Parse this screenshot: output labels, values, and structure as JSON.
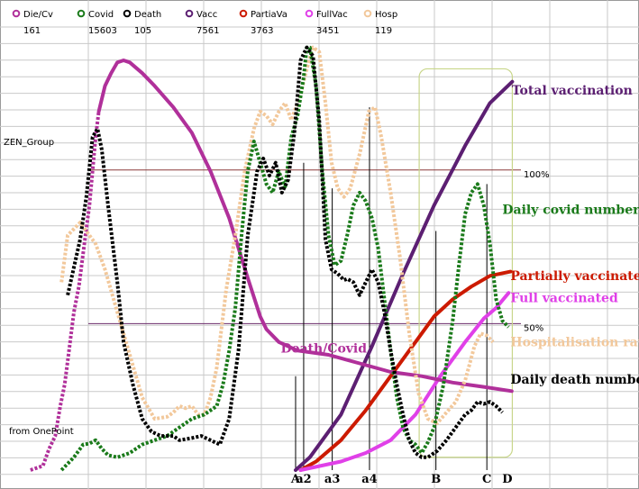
{
  "chart_data": {
    "type": "line",
    "legend": [
      {
        "name": "Die/Cv",
        "value": "161",
        "color": "#b0309a"
      },
      {
        "name": "Covid",
        "value": "15603",
        "color": "#1a7a1a"
      },
      {
        "name": "Death",
        "value": "105",
        "color": "#000000"
      },
      {
        "name": "Vacc",
        "value": "7561",
        "color": "#5c1f72"
      },
      {
        "name": "PartiaVa",
        "value": "3763",
        "color": "#cc1a00"
      },
      {
        "name": "FullVac",
        "value": "3451",
        "color": "#e040e8"
      },
      {
        "name": "Hosp",
        "value": "119",
        "color": "#f2c89b"
      }
    ],
    "xlim": [
      0,
      100
    ],
    "ylim": [
      0,
      100
    ],
    "reference_lines": [
      {
        "label": "100%",
        "y": 70.3,
        "color": "#8b3a3a"
      },
      {
        "label": "50%",
        "y": 34.3,
        "color": "#6a2a6a"
      }
    ],
    "side_labels": {
      "top": "ZEN_Group",
      "bottom": "from OnePoint"
    },
    "markers": [
      {
        "label": "A",
        "x": 44.7
      },
      {
        "label": "a2",
        "x": 46.0
      },
      {
        "label": "a3",
        "x": 50.6
      },
      {
        "label": "a4",
        "x": 56.6
      },
      {
        "label": "B",
        "x": 67.3
      },
      {
        "label": "C",
        "x": 75.5
      },
      {
        "label": "D",
        "x": 78.8
      }
    ],
    "series_labels": [
      {
        "text": "Total vaccination",
        "color": "#5c1f72",
        "x": 79.5,
        "y": 88
      },
      {
        "text": "Daily covid number",
        "color": "#1a7a1a",
        "x": 78.0,
        "y": 60
      },
      {
        "text": "Partially vaccinated",
        "color": "#cc1a00",
        "x": 79.3,
        "y": 44.5
      },
      {
        "text": "Full vaccinated",
        "color": "#e040e8",
        "x": 79.3,
        "y": 39.3
      },
      {
        "text": "Hospitalisation rate",
        "color": "#f2c89b",
        "x": 79.3,
        "y": 29
      },
      {
        "text": "Daily death number",
        "color": "#000000",
        "x": 79.3,
        "y": 20.3
      },
      {
        "text": "Death/Covid",
        "color": "#b0309a",
        "x": 42.3,
        "y": 27.5
      }
    ],
    "series": [
      {
        "name": "Vacc",
        "color": "#5c1f72",
        "style": "solid",
        "points": [
          [
            44.7,
            0
          ],
          [
            47,
            3
          ],
          [
            52,
            13
          ],
          [
            57,
            29
          ],
          [
            62,
            46
          ],
          [
            67,
            62
          ],
          [
            72,
            76
          ],
          [
            76,
            86
          ],
          [
            79.6,
            91
          ]
        ]
      },
      {
        "name": "PartiaVa",
        "color": "#cc1a00",
        "style": "solid",
        "points": [
          [
            45.5,
            0
          ],
          [
            48,
            2
          ],
          [
            52,
            7
          ],
          [
            56,
            14
          ],
          [
            60,
            22
          ],
          [
            64,
            30
          ],
          [
            67,
            36
          ],
          [
            70,
            40
          ],
          [
            73,
            43
          ],
          [
            76,
            45.5
          ],
          [
            79.3,
            46.5
          ]
        ]
      },
      {
        "name": "FullVac",
        "color": "#e040e8",
        "style": "solid",
        "points": [
          [
            45.5,
            0
          ],
          [
            52,
            2
          ],
          [
            56,
            4
          ],
          [
            60,
            7
          ],
          [
            64,
            13
          ],
          [
            68,
            22
          ],
          [
            72,
            30
          ],
          [
            75,
            35.5
          ],
          [
            77,
            38
          ],
          [
            79,
            41.5
          ]
        ]
      },
      {
        "name": "Die/Cv",
        "color": "#b0309a",
        "style": "dotted-left",
        "points": [
          [
            2,
            0
          ],
          [
            4,
            1
          ],
          [
            5,
            5
          ],
          [
            6,
            8
          ],
          [
            6.8,
            15
          ],
          [
            7.5,
            20
          ],
          [
            8.3,
            29
          ],
          [
            9,
            37
          ],
          [
            9.8,
            43
          ],
          [
            10.6,
            52
          ],
          [
            11.5,
            62
          ],
          [
            12.5,
            78
          ],
          [
            13,
            84
          ],
          [
            14,
            90
          ],
          [
            15,
            93
          ],
          [
            16,
            95.5
          ],
          [
            17,
            96
          ],
          [
            18,
            95.5
          ],
          [
            20,
            93
          ],
          [
            22,
            90
          ],
          [
            25,
            85
          ],
          [
            28,
            79
          ],
          [
            31,
            70
          ],
          [
            34,
            59
          ],
          [
            37,
            45
          ],
          [
            39,
            36
          ],
          [
            40,
            33
          ],
          [
            42,
            30
          ],
          [
            45,
            28
          ],
          [
            50,
            27
          ],
          [
            55,
            25
          ],
          [
            60,
            23
          ],
          [
            65,
            22
          ],
          [
            70,
            20.5
          ],
          [
            75,
            19.5
          ],
          [
            79.5,
            18.5
          ]
        ]
      },
      {
        "name": "Hosp",
        "color": "#f2c89b",
        "style": "dotted",
        "points": [
          [
            7,
            44
          ],
          [
            8,
            55
          ],
          [
            10,
            58
          ],
          [
            12.5,
            53
          ],
          [
            14,
            47
          ],
          [
            16,
            37
          ],
          [
            18,
            27
          ],
          [
            20,
            17
          ],
          [
            22,
            12
          ],
          [
            24,
            12.5
          ],
          [
            25,
            13.5
          ],
          [
            26,
            15
          ],
          [
            27,
            14.5
          ],
          [
            28,
            15
          ],
          [
            29,
            13
          ],
          [
            30,
            13
          ],
          [
            31,
            17
          ],
          [
            32,
            24
          ],
          [
            33.5,
            42
          ],
          [
            35,
            55
          ],
          [
            36.5,
            70
          ],
          [
            38,
            80
          ],
          [
            39,
            84
          ],
          [
            40,
            83
          ],
          [
            41,
            81
          ],
          [
            42,
            84
          ],
          [
            43,
            86
          ],
          [
            44,
            82
          ],
          [
            45.5,
            88
          ],
          [
            46.5,
            94
          ],
          [
            47.5,
            99
          ],
          [
            48.5,
            98
          ],
          [
            49.5,
            86
          ],
          [
            50.5,
            72
          ],
          [
            51.5,
            66
          ],
          [
            52.5,
            64
          ],
          [
            53.5,
            66
          ],
          [
            55,
            74
          ],
          [
            56.5,
            84
          ],
          [
            57.5,
            85
          ],
          [
            58.5,
            78
          ],
          [
            60,
            65
          ],
          [
            61.5,
            50
          ],
          [
            63,
            32
          ],
          [
            64.5,
            18
          ],
          [
            66,
            12
          ],
          [
            67.5,
            11
          ],
          [
            69,
            13.5
          ],
          [
            70.5,
            16
          ],
          [
            72,
            21
          ],
          [
            73.5,
            29
          ],
          [
            74.5,
            32
          ],
          [
            75.5,
            31.5
          ],
          [
            76.5,
            30
          ]
        ]
      },
      {
        "name": "Covid",
        "color": "#1a7a1a",
        "style": "dotted",
        "points": [
          [
            7,
            0
          ],
          [
            9,
            3
          ],
          [
            10.5,
            6
          ],
          [
            11.5,
            6.2
          ],
          [
            12.5,
            7
          ],
          [
            13.5,
            5
          ],
          [
            14.5,
            3.5
          ],
          [
            16,
            3
          ],
          [
            18,
            4
          ],
          [
            20,
            6
          ],
          [
            22,
            7
          ],
          [
            24,
            8
          ],
          [
            26,
            10
          ],
          [
            28,
            12
          ],
          [
            30,
            13
          ],
          [
            32,
            15
          ],
          [
            33,
            20
          ],
          [
            34,
            28
          ],
          [
            35,
            38
          ],
          [
            36,
            55
          ],
          [
            37,
            70
          ],
          [
            38,
            77
          ],
          [
            39,
            72
          ],
          [
            40,
            67
          ],
          [
            41,
            65
          ],
          [
            42,
            70
          ],
          [
            43,
            66
          ],
          [
            44,
            78
          ],
          [
            45,
            83
          ],
          [
            46,
            92
          ],
          [
            46.5,
            99
          ],
          [
            47,
            99
          ],
          [
            48,
            90
          ],
          [
            49,
            70
          ],
          [
            50,
            55
          ],
          [
            51,
            48
          ],
          [
            52,
            49
          ],
          [
            53,
            55
          ],
          [
            54,
            62
          ],
          [
            55,
            65
          ],
          [
            56,
            63
          ],
          [
            57,
            59
          ],
          [
            58,
            52
          ],
          [
            59,
            40
          ],
          [
            60,
            28
          ],
          [
            61,
            17
          ],
          [
            62,
            10
          ],
          [
            63,
            7
          ],
          [
            64,
            6
          ],
          [
            65,
            4
          ],
          [
            66,
            6.5
          ],
          [
            67,
            10
          ],
          [
            68.5,
            20
          ],
          [
            70,
            35
          ],
          [
            71,
            48
          ],
          [
            72,
            60
          ],
          [
            73,
            65
          ],
          [
            74,
            67
          ],
          [
            75,
            62
          ],
          [
            76,
            53
          ],
          [
            77,
            40
          ],
          [
            78,
            35
          ],
          [
            79,
            33.5
          ]
        ]
      },
      {
        "name": "Death",
        "color": "#000000",
        "style": "dotted",
        "points": [
          [
            8,
            41
          ],
          [
            10,
            54
          ],
          [
            11,
            64
          ],
          [
            12,
            78
          ],
          [
            12.8,
            80
          ],
          [
            13.5,
            75
          ],
          [
            14.5,
            62
          ],
          [
            16,
            44
          ],
          [
            17,
            30
          ],
          [
            18.5,
            20
          ],
          [
            20,
            12
          ],
          [
            21.5,
            9
          ],
          [
            23,
            8
          ],
          [
            25,
            8
          ],
          [
            26,
            7
          ],
          [
            28,
            7.5
          ],
          [
            29.5,
            8
          ],
          [
            31,
            7
          ],
          [
            32.5,
            6
          ],
          [
            34,
            12
          ],
          [
            35.5,
            28
          ],
          [
            37,
            55
          ],
          [
            38.5,
            70
          ],
          [
            39.5,
            73
          ],
          [
            40.5,
            69
          ],
          [
            41.5,
            72
          ],
          [
            42.5,
            65
          ],
          [
            43.5,
            68
          ],
          [
            44.5,
            79
          ],
          [
            45.5,
            96
          ],
          [
            46.5,
            99
          ],
          [
            47.5,
            97
          ],
          [
            48.5,
            82
          ],
          [
            49.5,
            54
          ],
          [
            50.5,
            47
          ],
          [
            51.5,
            46
          ],
          [
            52.5,
            44.5
          ],
          [
            53,
            44.8
          ],
          [
            54,
            44
          ],
          [
            55,
            41
          ],
          [
            56,
            44
          ],
          [
            57,
            47
          ],
          [
            58,
            44
          ],
          [
            59,
            37
          ],
          [
            60,
            28
          ],
          [
            61,
            20
          ],
          [
            62,
            13
          ],
          [
            63,
            7
          ],
          [
            64,
            4
          ],
          [
            65,
            3
          ],
          [
            66,
            3
          ],
          [
            67.5,
            4.5
          ],
          [
            69,
            7
          ],
          [
            70.5,
            10
          ],
          [
            72,
            13
          ],
          [
            73,
            14
          ],
          [
            74,
            16
          ],
          [
            75,
            15.5
          ],
          [
            76,
            16
          ],
          [
            77,
            15
          ],
          [
            78,
            13.5
          ]
        ]
      }
    ]
  }
}
